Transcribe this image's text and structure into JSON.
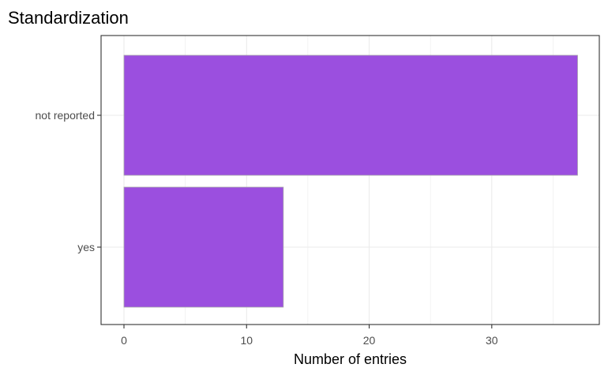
{
  "chart_data": {
    "type": "bar",
    "orientation": "horizontal",
    "title": "Standardization",
    "xlabel": "Number of entries",
    "ylabel": "",
    "categories": [
      "not reported",
      "yes"
    ],
    "values": [
      37,
      13
    ],
    "xlim": [
      0,
      38.85
    ],
    "x_ticks": [
      0,
      10,
      20,
      30
    ],
    "grid": true,
    "legend": "none",
    "colors": {
      "bar_fill": "#9b4fdf",
      "bar_stroke": "#a9a9a9",
      "grid": "#ebebeb",
      "panel_border": "#333333",
      "tick_text": "#4d4d4d",
      "title_text": "#000000"
    }
  }
}
